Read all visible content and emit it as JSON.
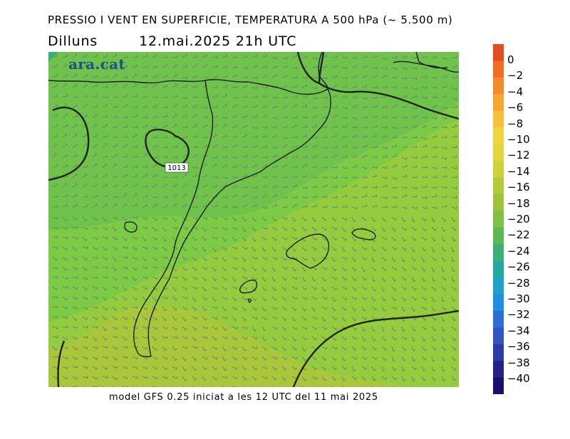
{
  "header": {
    "title": "PRESSIO I VENT EN SUPERFICIE, TEMPERATURA A 500 hPa (~ 5.500 m)",
    "day": "Dilluns",
    "datetime": "12.mai.2025 21h UTC"
  },
  "logo": {
    "text": "ara.cat"
  },
  "map": {
    "isobar_label": "1013",
    "fill_colors": [
      "#6ec44a",
      "#7ccb45",
      "#93cc3d",
      "#a8c83a"
    ]
  },
  "color_scale": {
    "labels": [
      "0",
      "−2",
      "−4",
      "−6",
      "−8",
      "−10",
      "−12",
      "−14",
      "−16",
      "−18",
      "−20",
      "−22",
      "−24",
      "−26",
      "−28",
      "−30",
      "−32",
      "−34",
      "−36",
      "−38",
      "−40"
    ],
    "colors": [
      "#e24e1e",
      "#f06d22",
      "#f58a2a",
      "#f8a632",
      "#f6c13a",
      "#f0d43d",
      "#e2d43a",
      "#cfd13a",
      "#b4ca38",
      "#9bc43a",
      "#7fc145",
      "#5bb953",
      "#3caf75",
      "#22a9a0",
      "#1ca3c8",
      "#1f8fe3",
      "#2a6fd6",
      "#2f55c2",
      "#2d3ba8",
      "#23238c",
      "#1a0f6e"
    ]
  },
  "footer": {
    "text": "model GFS 0.25 iniciat a les 12 UTC del 11 mai 2025"
  }
}
